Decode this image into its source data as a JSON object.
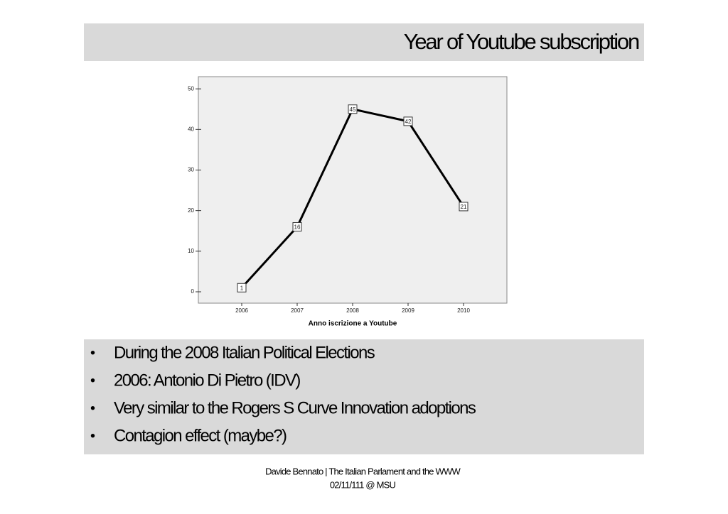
{
  "slide": {
    "title": "Year of Youtube subscription",
    "bullets": [
      "During the 2008 Italian Political Elections",
      "2006: Antonio Di Pietro (IDV)",
      "Very similar to the Rogers S Curve Innovation adoptions",
      "Contagion effect (maybe?)"
    ],
    "footer": [
      "Davide Bennato | The Italian Parlament and the WWW",
      "02/11/111 @ MSU"
    ]
  },
  "chart_data": {
    "type": "line",
    "x_label": "Anno iscrizione a Youtube",
    "categories": [
      "2006",
      "2007",
      "2008",
      "2009",
      "2010"
    ],
    "values": [
      1,
      16,
      45,
      42,
      21
    ],
    "color": "#000000",
    "ylim": [
      -2.8,
      53
    ],
    "yticks": [
      0,
      10,
      20,
      30,
      40,
      50
    ],
    "value_labels_boxed": true
  }
}
